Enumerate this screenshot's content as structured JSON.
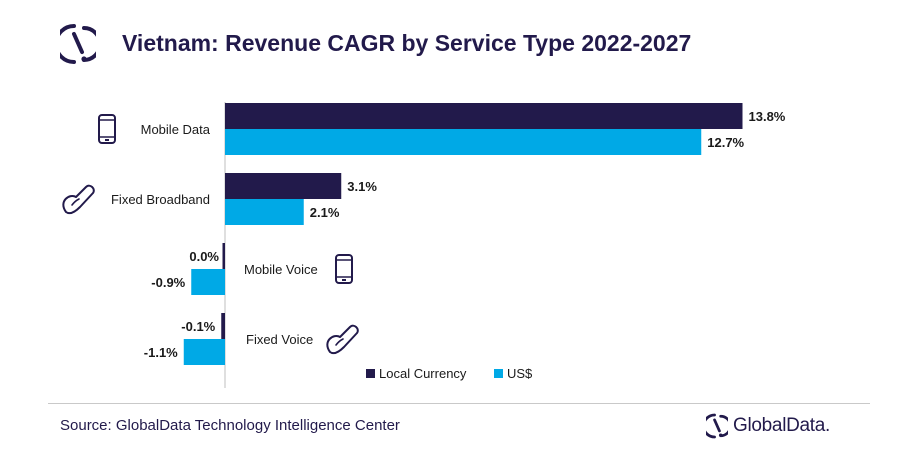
{
  "header": {
    "title": "Vietnam: Revenue CAGR by Service Type 2022-2027",
    "logo_icon": "globaldata-logo-icon"
  },
  "chart_data": {
    "type": "bar",
    "orientation": "horizontal",
    "title": "Vietnam: Revenue CAGR by Service Type 2022-2027",
    "categories": [
      "Mobile Data",
      "Fixed Broadband",
      "Mobile Voice",
      "Fixed Voice"
    ],
    "category_icons": [
      "mobile-phone-icon",
      "telephone-handset-icon",
      "mobile-phone-icon",
      "telephone-handset-icon"
    ],
    "series": [
      {
        "name": "Local Currency",
        "color": "#221a4b",
        "values": [
          13.8,
          3.1,
          0.0,
          -0.1
        ],
        "labels": [
          "13.8%",
          "3.1%",
          "0.0%",
          "-0.1%"
        ]
      },
      {
        "name": "US$",
        "color": "#00a9e6",
        "values": [
          12.7,
          2.1,
          -0.9,
          -1.1
        ],
        "labels": [
          "12.7%",
          "2.1%",
          "-0.9%",
          "-1.1%"
        ]
      }
    ],
    "unit": "%",
    "legend_position": "bottom",
    "grid": false
  },
  "footer": {
    "source": "Source: GlobalData Technology Intelligence Center",
    "brand": "GlobalData."
  }
}
